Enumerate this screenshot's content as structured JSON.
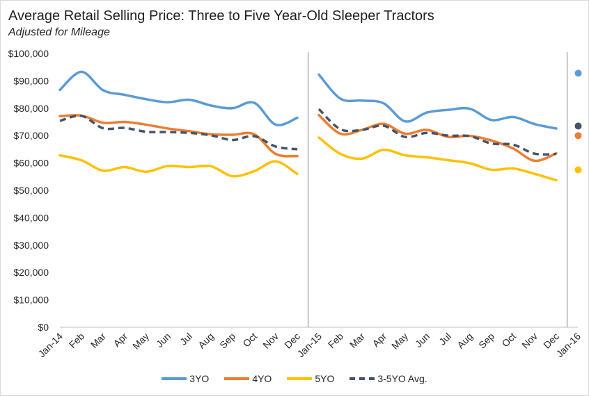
{
  "chart_data": {
    "type": "line",
    "title": "Average Retail Selling Price: Three to Five Year-Old Sleeper Tractors",
    "subtitle": "Adjusted for Mileage",
    "xlabel": "",
    "ylabel": "",
    "ylim": [
      0,
      100000
    ],
    "yticks": [
      "$0",
      "$10,000",
      "$20,000",
      "$30,000",
      "$40,000",
      "$50,000",
      "$60,000",
      "$70,000",
      "$80,000",
      "$90,000",
      "$100,000"
    ],
    "x_tick_labels": [
      "Jan-14",
      "Feb",
      "Mar",
      "Apr",
      "May",
      "Jun",
      "Jul",
      "Aug",
      "Sep",
      "Oct",
      "Nov",
      "Dec",
      "Jan-15",
      "Feb",
      "Mar",
      "Apr",
      "May",
      "Jun",
      "Jul",
      "Aug",
      "Sep",
      "Oct",
      "Nov",
      "Dec",
      "Jan-16"
    ],
    "panels": [
      {
        "name": "2014",
        "categories": [
          "Jan-14",
          "Feb",
          "Mar",
          "Apr",
          "May",
          "Jun",
          "Jul",
          "Aug",
          "Sep",
          "Oct",
          "Nov",
          "Dec"
        ]
      },
      {
        "name": "2015",
        "categories": [
          "Jan-15",
          "Feb",
          "Mar",
          "Apr",
          "May",
          "Jun",
          "Jul",
          "Aug",
          "Sep",
          "Oct",
          "Nov",
          "Dec"
        ]
      },
      {
        "name": "2016",
        "categories": [
          "Jan-16"
        ]
      }
    ],
    "series": [
      {
        "name": "3YO",
        "color": "#5b9bd5",
        "dashed": false,
        "values_2014": [
          86700,
          93300,
          86600,
          84900,
          83300,
          82200,
          83100,
          81000,
          80000,
          82000,
          74000,
          76500
        ],
        "values_2015": [
          92300,
          83500,
          82800,
          81800,
          75200,
          78400,
          79400,
          79800,
          75700,
          76800,
          74200,
          72600
        ],
        "value_2016": 92800
      },
      {
        "name": "4YO",
        "color": "#ed7d31",
        "dashed": false,
        "values_2014": [
          77100,
          77300,
          74700,
          75000,
          74000,
          72600,
          71600,
          70500,
          70300,
          70500,
          63300,
          62500
        ],
        "values_2015": [
          77500,
          70700,
          72100,
          74300,
          70700,
          72100,
          69500,
          69900,
          68200,
          65300,
          60800,
          63500
        ],
        "value_2016": 70000
      },
      {
        "name": "5YO",
        "color": "#ffc000",
        "dashed": false,
        "values_2014": [
          62800,
          61000,
          57200,
          58500,
          56800,
          58900,
          58500,
          58800,
          55200,
          57000,
          60600,
          56000
        ],
        "values_2015": [
          69300,
          63300,
          61600,
          64800,
          62800,
          62100,
          61000,
          59900,
          57500,
          58000,
          56000,
          53700
        ],
        "value_2016": 57500
      },
      {
        "name": "3-5YO Avg.",
        "color": "#44546a",
        "dashed": true,
        "values_2014": [
          75400,
          77200,
          72700,
          72800,
          71400,
          71300,
          71000,
          70100,
          68400,
          69800,
          66000,
          65000
        ],
        "values_2015": [
          79700,
          72300,
          72100,
          73600,
          69500,
          71000,
          70000,
          69800,
          67100,
          66700,
          63400,
          63300
        ],
        "value_2016": 73500
      }
    ]
  }
}
